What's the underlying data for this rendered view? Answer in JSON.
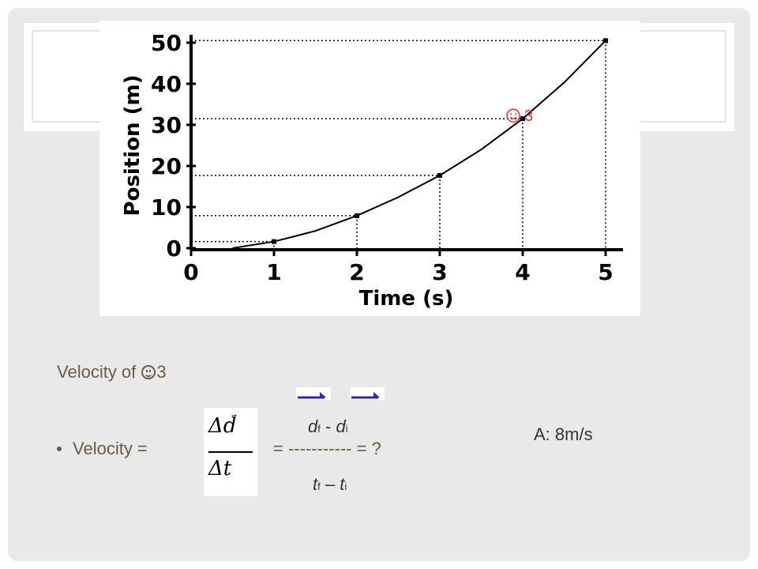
{
  "chart_data": {
    "type": "line",
    "xlabel": "Time (s)",
    "ylabel": "Position (m)",
    "xlim": [
      0,
      5
    ],
    "ylim": [
      0,
      50
    ],
    "x_ticks": [
      "0",
      "1",
      "2",
      "3",
      "4",
      "5"
    ],
    "y_ticks": [
      "0",
      "10",
      "20",
      "30",
      "40",
      "50"
    ],
    "series": [
      {
        "x": [
          0.5,
          1,
          1.5,
          2,
          2.5,
          3,
          3.5,
          4,
          4.5,
          5
        ],
        "y": [
          0,
          1.6,
          4.2,
          7.9,
          12.4,
          17.7,
          24,
          31.5,
          40.3,
          50.5
        ]
      }
    ],
    "marked_points": [
      {
        "x": 1,
        "y": 1.6
      },
      {
        "x": 2,
        "y": 7.9
      },
      {
        "x": 3,
        "y": 17.7
      },
      {
        "x": 4,
        "y": 31.5
      },
      {
        "x": 5,
        "y": 50.5
      }
    ],
    "annotation": {
      "text": "3",
      "point_index": 3,
      "color": "#e8322b"
    },
    "grid": "dotted guide lines to marked points"
  },
  "slide": {
    "heading_prefix": "Velocity of ",
    "heading_suffix": "3",
    "velocity_label": "Velocity = ",
    "formula_num": "Δd",
    "formula_den": "Δt",
    "equals_line": "= ----------- = ?",
    "df_d": "d",
    "df_sub": "f",
    "minus": " - ",
    "di_d": "d",
    "di_sub": "i",
    "tf_t": "t",
    "tf_sub": "f",
    "dash": " – ",
    "ti_t": "t",
    "ti_sub": "i",
    "answer": "A: 8m/s"
  },
  "colors": {
    "vector_arrow": "#3b1fc9",
    "annotation_red": "#e8322b",
    "text_brown": "#6b5b45"
  }
}
